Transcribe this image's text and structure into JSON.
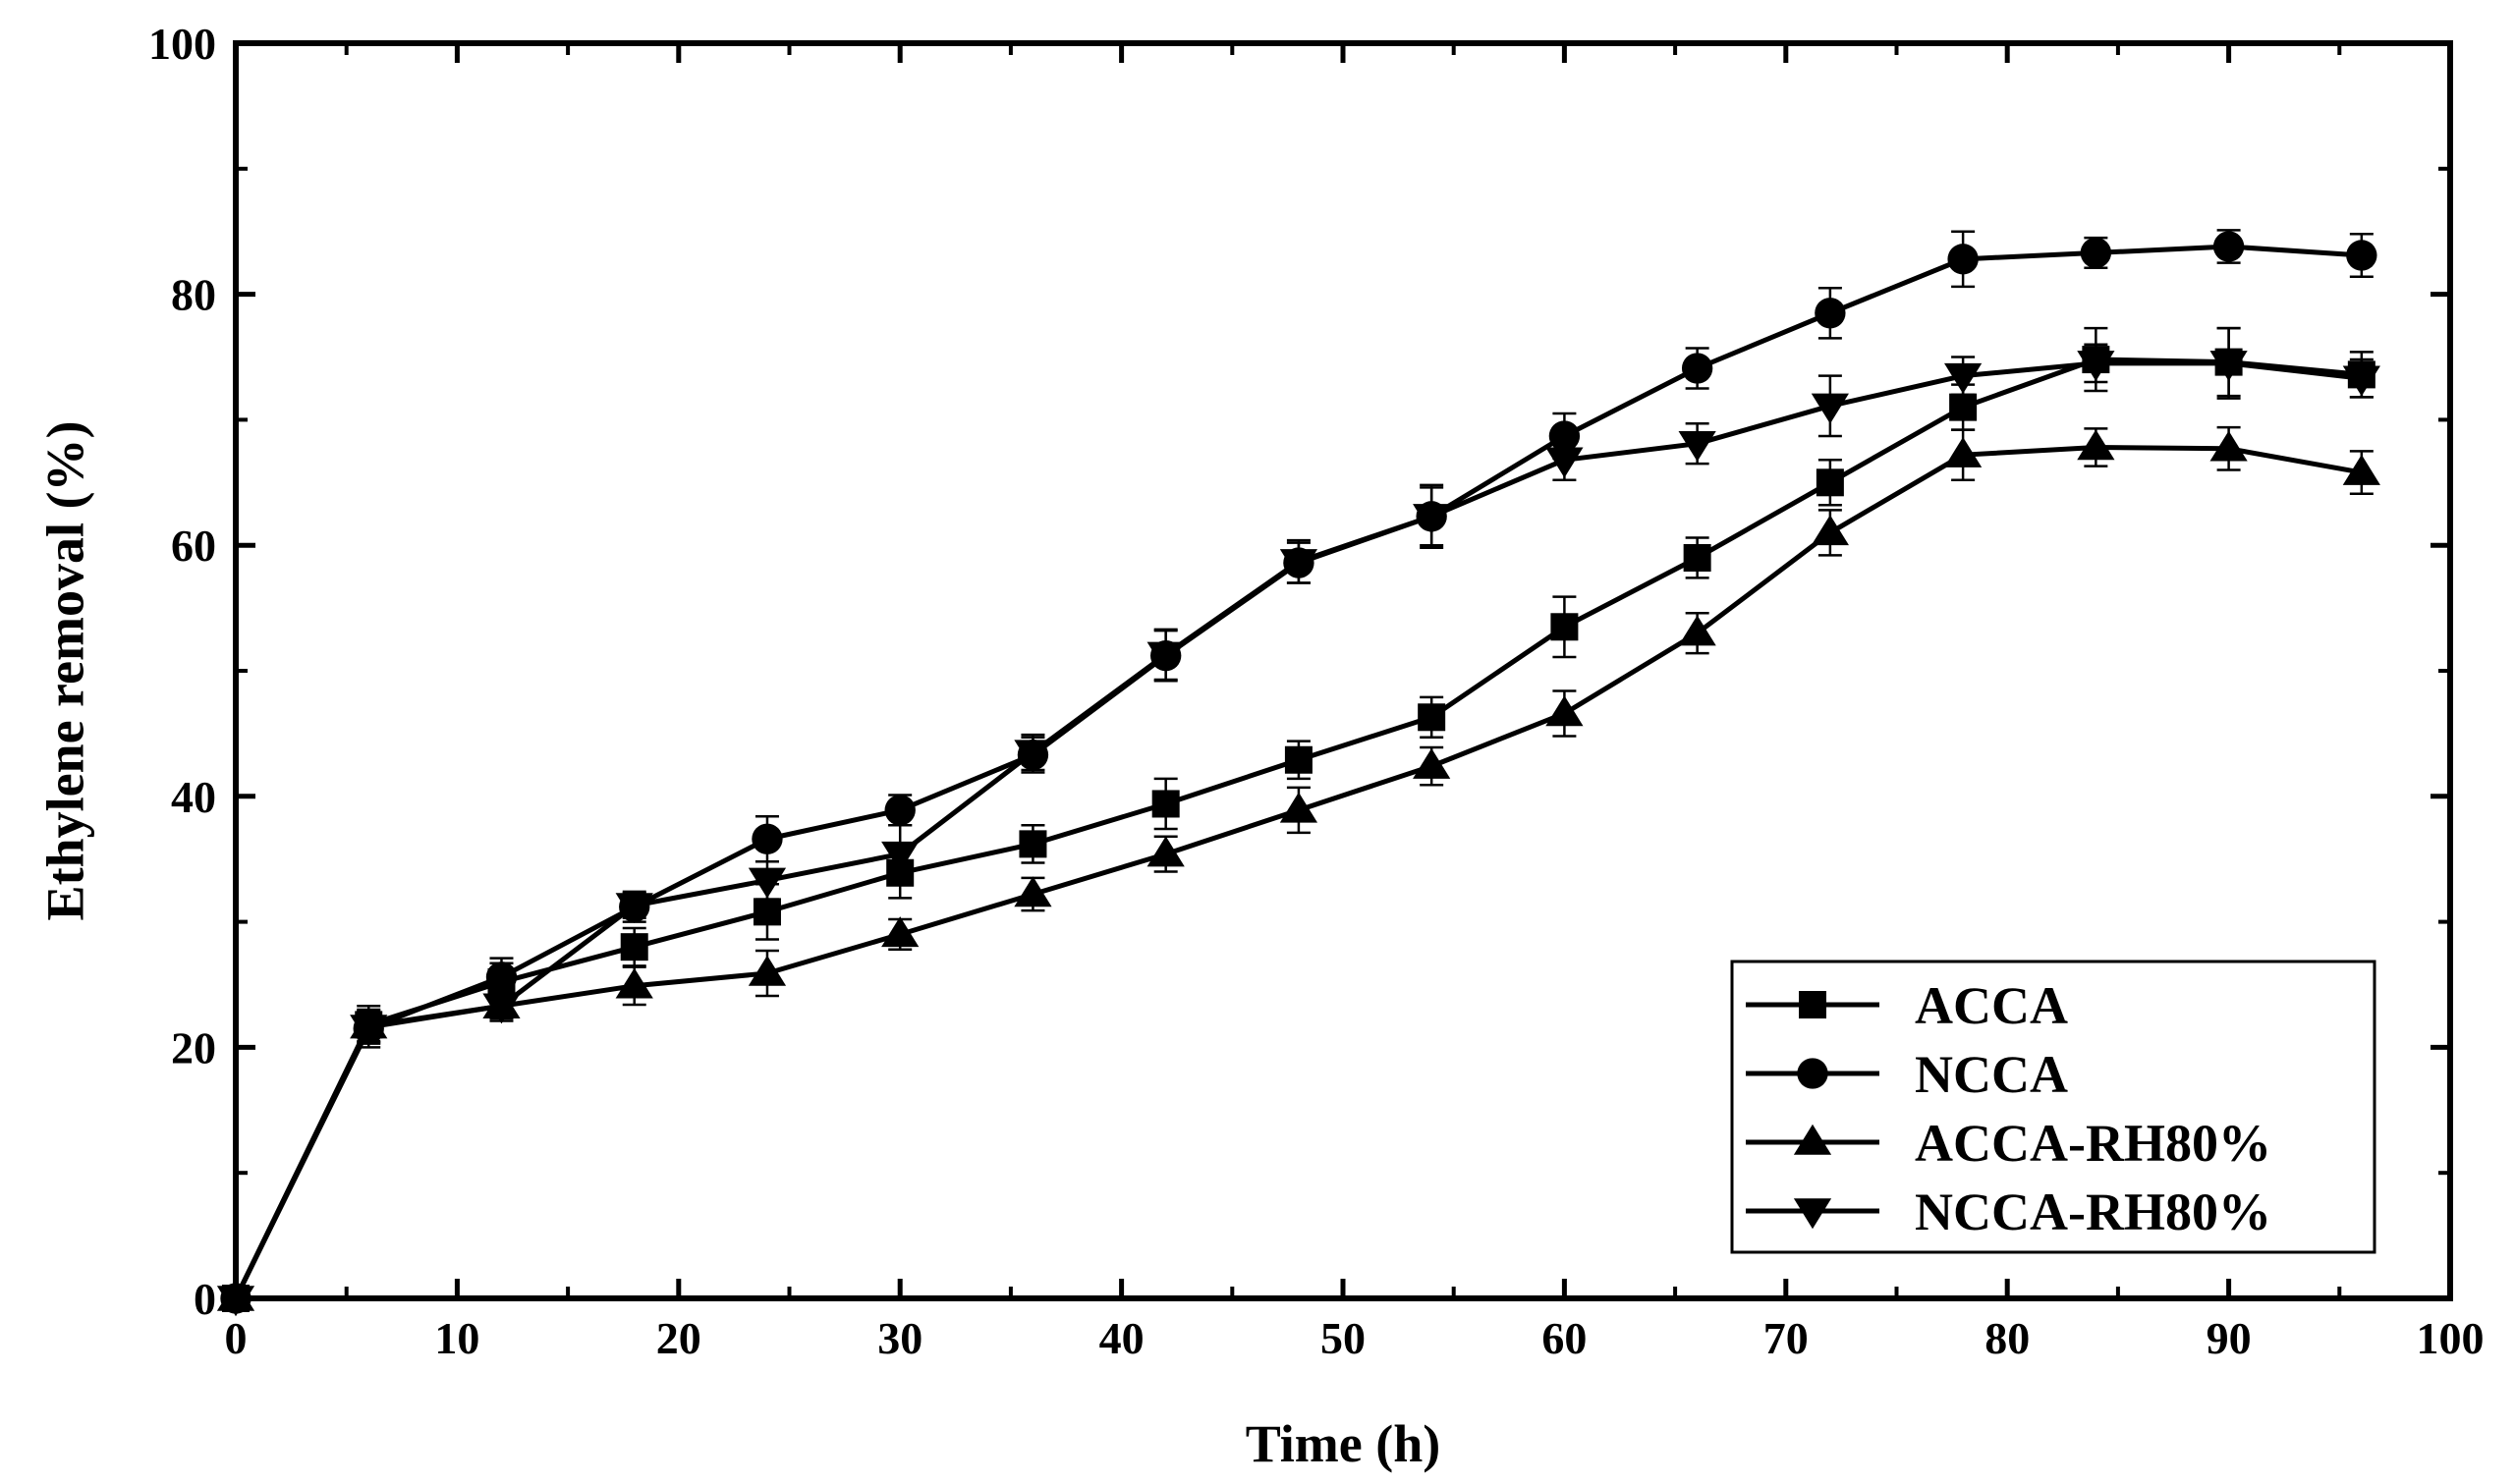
{
  "chart_data": {
    "type": "line",
    "title": "",
    "xlabel": "Time (h)",
    "ylabel": "Ethylene removal (%)",
    "xlim": [
      0,
      100
    ],
    "ylim": [
      0,
      100
    ],
    "xticks": [
      "0",
      "10",
      "20",
      "30",
      "40",
      "50",
      "60",
      "70",
      "80",
      "90",
      "100"
    ],
    "yticks": [
      "0",
      "20",
      "40",
      "60",
      "80",
      "100"
    ],
    "grid": false,
    "legend_position": "bottom-right",
    "series": [
      {
        "name": "ACCA",
        "marker": "square",
        "x": [
          0,
          6,
          12,
          18,
          24,
          30,
          36,
          42,
          48,
          54,
          60,
          66,
          72,
          78,
          84,
          90,
          96
        ],
        "y": [
          0,
          21.8,
          25.2,
          28.0,
          30.8,
          33.9,
          36.2,
          39.4,
          42.9,
          46.3,
          53.5,
          59.0,
          65.0,
          71.0,
          74.8,
          74.6,
          73.6
        ],
        "err": [
          0,
          1.5,
          1.5,
          1.5,
          2.2,
          2.0,
          1.5,
          2.0,
          1.5,
          1.6,
          2.4,
          1.6,
          1.8,
          1.8,
          2.5,
          2.7,
          1.8
        ]
      },
      {
        "name": "NCCA",
        "marker": "circle",
        "x": [
          0,
          6,
          12,
          18,
          24,
          30,
          36,
          42,
          48,
          54,
          60,
          66,
          72,
          78,
          84,
          90,
          96
        ],
        "y": [
          0,
          21.5,
          25.6,
          31.2,
          36.6,
          38.9,
          43.3,
          51.2,
          58.6,
          62.3,
          68.7,
          74.1,
          78.5,
          82.8,
          83.3,
          83.8,
          83.1
        ],
        "err": [
          0,
          1.5,
          1.5,
          1.2,
          1.8,
          1.2,
          1.4,
          2.0,
          1.6,
          2.5,
          1.8,
          1.6,
          2.0,
          2.2,
          1.2,
          1.3,
          1.7
        ]
      },
      {
        "name": "ACCA-RH80%",
        "marker": "triangle-up",
        "x": [
          0,
          6,
          12,
          18,
          24,
          30,
          36,
          42,
          48,
          54,
          60,
          66,
          72,
          78,
          84,
          90,
          96
        ],
        "y": [
          0,
          21.7,
          23.3,
          24.9,
          25.9,
          29.0,
          32.2,
          35.4,
          38.9,
          42.4,
          46.6,
          53.0,
          61.0,
          67.2,
          67.8,
          67.7,
          65.8
        ],
        "err": [
          0,
          1.2,
          1.2,
          1.5,
          1.8,
          1.2,
          1.3,
          1.4,
          1.8,
          1.5,
          1.8,
          1.6,
          1.8,
          2.0,
          1.5,
          1.7,
          1.7
        ]
      },
      {
        "name": "NCCA-RH80%",
        "marker": "triangle-down",
        "x": [
          0,
          6,
          12,
          18,
          24,
          30,
          36,
          42,
          48,
          54,
          60,
          66,
          72,
          78,
          84,
          90,
          96
        ],
        "y": [
          0,
          21.6,
          23.3,
          31.3,
          33.3,
          35.4,
          43.5,
          51.3,
          58.7,
          62.3,
          66.8,
          68.1,
          71.1,
          73.5,
          74.5,
          74.5,
          73.3
        ],
        "err": [
          0,
          1.2,
          1.0,
          1.0,
          1.5,
          2.3,
          1.4,
          2.0,
          1.7,
          2.3,
          1.6,
          1.6,
          2.4,
          1.5,
          1.5,
          2.8,
          1.5
        ]
      }
    ]
  }
}
